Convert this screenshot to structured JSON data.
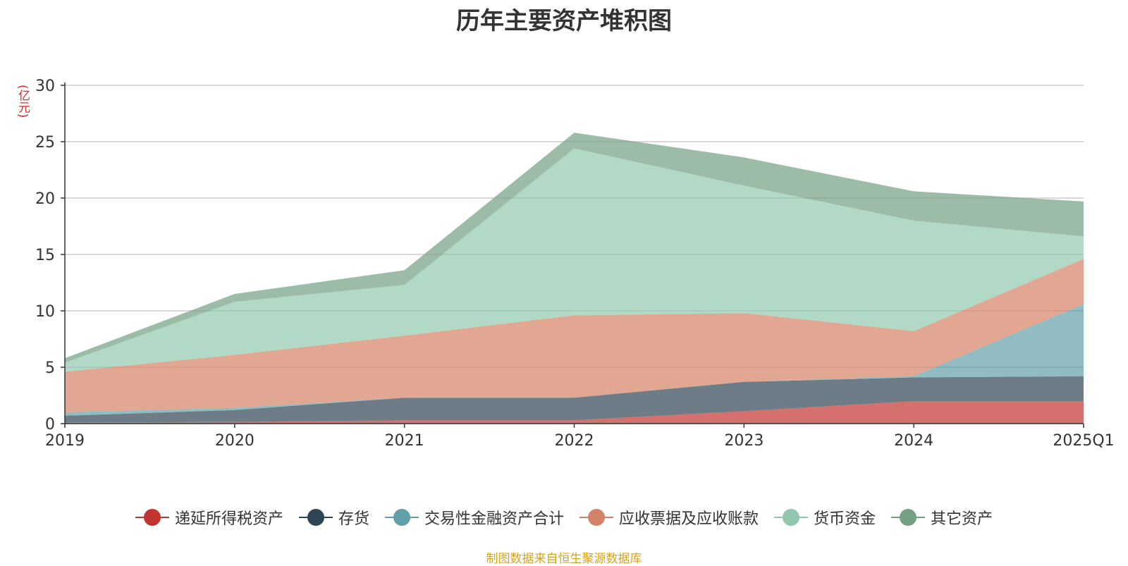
{
  "title": "历年主要资产堆积图",
  "unit": "(亿元)",
  "source": "制图数据来自恒生聚源数据库",
  "chart_data": {
    "type": "area",
    "stacked": true,
    "title": "历年主要资产堆积图",
    "ylabel": "(亿元)",
    "ylim": [
      0,
      30
    ],
    "yticks": [
      0,
      5,
      10,
      15,
      20,
      25,
      30
    ],
    "grid": true,
    "legend_position": "bottom",
    "categories": [
      "2019",
      "2020",
      "2021",
      "2022",
      "2023",
      "2024",
      "2025Q1"
    ],
    "series": [
      {
        "name": "递延所得税资产",
        "color": "#c23531",
        "values": [
          0.1,
          0.15,
          0.3,
          0.3,
          1.1,
          2.0,
          2.0
        ]
      },
      {
        "name": "存货",
        "color": "#2f4554",
        "values": [
          0.6,
          1.05,
          2.0,
          2.0,
          2.6,
          2.1,
          2.2
        ]
      },
      {
        "name": "交易性金融资产合计",
        "color": "#61a0a8",
        "values": [
          0.3,
          0.2,
          0.0,
          0.0,
          0.0,
          0.1,
          6.4
        ]
      },
      {
        "name": "应收票据及应收账款",
        "color": "#d48265",
        "values": [
          3.6,
          4.7,
          5.5,
          7.3,
          6.1,
          4.0,
          4.0
        ]
      },
      {
        "name": "货币资金",
        "color": "#91c7ae",
        "values": [
          0.8,
          4.7,
          4.5,
          14.8,
          11.3,
          9.8,
          2.0
        ]
      },
      {
        "name": "其它资产",
        "color": "#749f83",
        "values": [
          0.4,
          0.7,
          1.3,
          1.4,
          2.5,
          2.6,
          3.1
        ]
      }
    ]
  }
}
